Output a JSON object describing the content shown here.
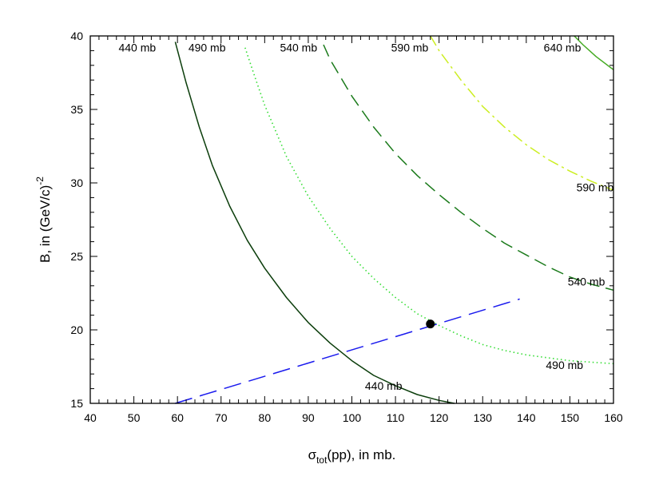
{
  "chart_data": {
    "type": "line",
    "xlim": [
      40,
      160
    ],
    "ylim": [
      15,
      40
    ],
    "x_major_ticks": [
      40,
      50,
      60,
      70,
      80,
      90,
      100,
      110,
      120,
      130,
      140,
      150,
      160
    ],
    "y_major_ticks": [
      15,
      20,
      25,
      30,
      35,
      40
    ],
    "xlabel": {
      "symbol": "σ",
      "subscript": "tot",
      "rest": "(pp), in mb."
    },
    "ylabel": {
      "main": "B, in (GeV/c)",
      "superscript": "-2"
    },
    "grid": false,
    "series": [
      {
        "label": "440 mb",
        "color": "#0b3d0b",
        "style": "solid",
        "x": [
          59.5,
          62,
          65,
          68,
          72,
          76,
          80,
          85,
          90,
          95,
          100,
          105,
          110,
          115,
          120,
          123.5
        ],
        "y": [
          39.6,
          36.8,
          33.8,
          31.2,
          28.4,
          26.1,
          24.2,
          22.2,
          20.5,
          19.1,
          17.9,
          16.9,
          16.2,
          15.6,
          15.2,
          15.0
        ]
      },
      {
        "label": "490 mb",
        "color": "#33dd33",
        "style": "dotted",
        "x": [
          75.5,
          78,
          80,
          85,
          90,
          95,
          100,
          105,
          110,
          115,
          120,
          125,
          130,
          135,
          140,
          145,
          150,
          155,
          160
        ],
        "y": [
          39.2,
          37.0,
          35.3,
          31.8,
          29.1,
          26.9,
          25.0,
          23.5,
          22.2,
          21.1,
          20.3,
          19.6,
          19.0,
          18.6,
          18.3,
          18.1,
          17.9,
          17.8,
          17.7
        ]
      },
      {
        "label": "540 mb",
        "color": "#1a7a1a",
        "style": "dash",
        "x": [
          93.5,
          95,
          100,
          105,
          110,
          115,
          120,
          125,
          130,
          135,
          140,
          145,
          150,
          155,
          160
        ],
        "y": [
          39.4,
          38.4,
          35.9,
          33.8,
          32.0,
          30.5,
          29.2,
          28.0,
          26.9,
          25.9,
          25.1,
          24.3,
          23.6,
          23.1,
          22.7
        ]
      },
      {
        "label": "590 mb",
        "color": "#ccee22",
        "style": "dashdot",
        "x": [
          118,
          120,
          125,
          130,
          135,
          140,
          145,
          150,
          155,
          160
        ],
        "y": [
          40.0,
          39.0,
          37.0,
          35.2,
          33.8,
          32.6,
          31.6,
          30.8,
          30.1,
          29.5
        ]
      },
      {
        "label": "640 mb",
        "color": "#44aa22",
        "style": "solid",
        "x": [
          151,
          153,
          156,
          160
        ],
        "y": [
          40.0,
          39.4,
          38.6,
          37.7
        ]
      },
      {
        "label": "",
        "color": "#1a1aee",
        "style": "longdash",
        "x": [
          59.5,
          138.5
        ],
        "y": [
          15.0,
          22.1
        ]
      }
    ],
    "marker_point": {
      "x": 118,
      "y": 20.4,
      "color": "#000000"
    },
    "annotations": [
      {
        "text": "440 mb",
        "x": 46.5,
        "y": 39.2
      },
      {
        "text": "490 mb",
        "x": 62.5,
        "y": 39.2
      },
      {
        "text": "540 mb",
        "x": 83.5,
        "y": 39.2
      },
      {
        "text": "590 mb",
        "x": 109,
        "y": 39.2
      },
      {
        "text": "640 mb",
        "x": 144,
        "y": 39.2
      },
      {
        "text": "590 mb",
        "x": 151.5,
        "y": 29.7
      },
      {
        "text": "540 mb",
        "x": 149.5,
        "y": 23.3
      },
      {
        "text": "490 mb",
        "x": 144.5,
        "y": 17.6
      },
      {
        "text": "440 mb",
        "x": 103,
        "y": 16.2
      }
    ]
  }
}
